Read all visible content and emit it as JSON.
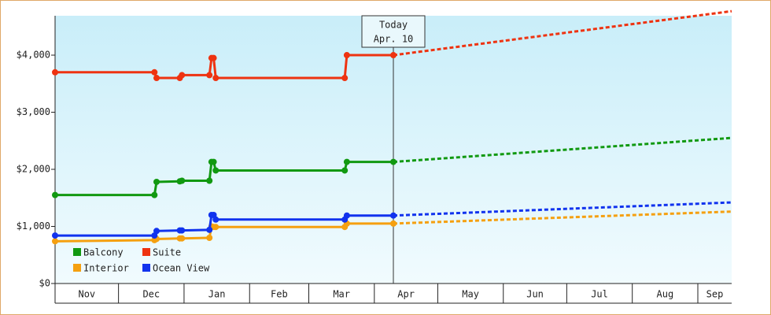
{
  "chart_data": {
    "type": "line",
    "xlim": [
      0,
      320
    ],
    "ylim": [
      0,
      4690
    ],
    "xticks": [
      {
        "value": 0,
        "label": "Nov"
      },
      {
        "value": 30,
        "label": "Dec"
      },
      {
        "value": 61,
        "label": "Jan"
      },
      {
        "value": 92,
        "label": "Feb"
      },
      {
        "value": 120,
        "label": "Mar"
      },
      {
        "value": 151,
        "label": "Apr"
      },
      {
        "value": 181,
        "label": "May"
      },
      {
        "value": 212,
        "label": "Jun"
      },
      {
        "value": 242,
        "label": "Jul"
      },
      {
        "value": 273,
        "label": "Aug"
      },
      {
        "value": 304,
        "label": "Sep"
      }
    ],
    "yticks": [
      {
        "value": 0,
        "label": "$0"
      },
      {
        "value": 1000,
        "label": "$1,000"
      },
      {
        "value": 2000,
        "label": "$2,000"
      },
      {
        "value": 3000,
        "label": "$3,000"
      },
      {
        "value": 4000,
        "label": "$4,000"
      }
    ],
    "today": {
      "x": 160,
      "label": "Today",
      "date": "Apr. 10"
    },
    "series": [
      {
        "name": "Balcony",
        "color": "#119911",
        "x": [
          0,
          47,
          48,
          59,
          60,
          73,
          74,
          75,
          76,
          137,
          138,
          160
        ],
        "values": [
          1550,
          1550,
          1780,
          1790,
          1800,
          1800,
          2130,
          2130,
          1980,
          1980,
          2130,
          2130
        ],
        "forecast": {
          "x": [
            160,
            320
          ],
          "values": [
            2130,
            2550
          ]
        }
      },
      {
        "name": "Suite",
        "color": "#ee3311",
        "x": [
          0,
          47,
          48,
          59,
          60,
          73,
          74,
          75,
          76,
          137,
          138,
          160
        ],
        "values": [
          3700,
          3700,
          3600,
          3600,
          3650,
          3650,
          3950,
          3950,
          3600,
          3600,
          4000,
          4000
        ],
        "forecast": {
          "x": [
            160,
            320
          ],
          "values": [
            4000,
            4770
          ]
        }
      },
      {
        "name": "Interior",
        "color": "#f5a010",
        "x": [
          0,
          47,
          48,
          59,
          60,
          73,
          74,
          75,
          76,
          137,
          138,
          160
        ],
        "values": [
          740,
          760,
          780,
          790,
          790,
          800,
          1000,
          990,
          990,
          990,
          1050,
          1050
        ],
        "forecast": {
          "x": [
            160,
            320
          ],
          "values": [
            1050,
            1260
          ]
        }
      },
      {
        "name": "Ocean View",
        "color": "#1133ee",
        "x": [
          0,
          47,
          48,
          59,
          60,
          73,
          74,
          75,
          76,
          137,
          138,
          160
        ],
        "values": [
          840,
          840,
          920,
          930,
          930,
          940,
          1200,
          1200,
          1120,
          1120,
          1190,
          1190
        ],
        "forecast": {
          "x": [
            160,
            320
          ],
          "values": [
            1190,
            1420
          ]
        }
      }
    ]
  }
}
